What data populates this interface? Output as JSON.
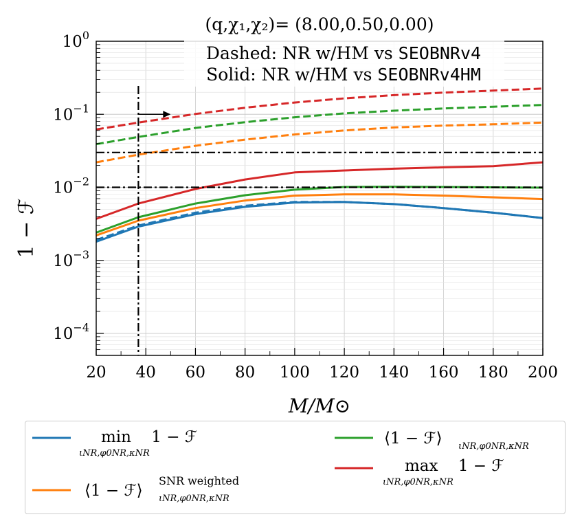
{
  "chart_data": {
    "type": "line",
    "title": "(q,χ₁,χ₂)= (8.00,0.50,0.00)",
    "annotations": {
      "dashed": {
        "prefix": "Dashed: NR w/HM vs ",
        "code": "SEOBNRv4"
      },
      "solid": {
        "prefix": "Solid: NR w/HM vs ",
        "code": "SEOBNRv4HM"
      }
    },
    "xlabel": "M/M⊙",
    "ylabel": "1 − ℱ",
    "yscale": "log",
    "xlim": [
      20,
      200
    ],
    "ylim": [
      5e-05,
      1.0
    ],
    "xticks": [
      20,
      40,
      60,
      80,
      100,
      120,
      140,
      160,
      180,
      200
    ],
    "xtick_labels": [
      "20",
      "40",
      "60",
      "80",
      "100",
      "120",
      "140",
      "160",
      "180",
      "200"
    ],
    "yticks": [
      0.0001,
      0.001,
      0.01,
      0.1,
      1.0
    ],
    "ytick_labels": [
      {
        "base": "10",
        "exp": "−4"
      },
      {
        "base": "10",
        "exp": "−3"
      },
      {
        "base": "10",
        "exp": "−2"
      },
      {
        "base": "10",
        "exp": "−1"
      },
      {
        "base": "10",
        "exp": "0"
      }
    ],
    "grid": true,
    "x": [
      20,
      37,
      60,
      80,
      100,
      120,
      140,
      160,
      180,
      200
    ],
    "series": [
      {
        "name": "min",
        "color": "#1f77b4",
        "style": "solid",
        "values": [
          0.0018,
          0.0029,
          0.0043,
          0.0054,
          0.0062,
          0.0063,
          0.0059,
          0.0052,
          0.0045,
          0.0038
        ]
      },
      {
        "name": "min",
        "color": "#1f77b4",
        "style": "dashed",
        "values": [
          0.0019,
          0.003,
          0.0045,
          0.0056,
          0.0063,
          0.0063,
          0.0059,
          0.0052,
          0.0045,
          0.0038
        ]
      },
      {
        "name": "snr_weighted",
        "color": "#ff7f0e",
        "style": "solid",
        "values": [
          0.0022,
          0.0035,
          0.0052,
          0.0066,
          0.0077,
          0.008,
          0.008,
          0.0077,
          0.0073,
          0.0069
        ]
      },
      {
        "name": "snr_weighted",
        "color": "#ff7f0e",
        "style": "dashed",
        "values": [
          0.022,
          0.028,
          0.037,
          0.045,
          0.053,
          0.06,
          0.066,
          0.07,
          0.073,
          0.077
        ]
      },
      {
        "name": "mean",
        "color": "#2ca02c",
        "style": "solid",
        "values": [
          0.0024,
          0.0039,
          0.006,
          0.0078,
          0.0093,
          0.0101,
          0.0102,
          0.0101,
          0.01,
          0.0099
        ]
      },
      {
        "name": "mean",
        "color": "#2ca02c",
        "style": "dashed",
        "values": [
          0.039,
          0.049,
          0.065,
          0.078,
          0.091,
          0.103,
          0.112,
          0.12,
          0.127,
          0.134
        ]
      },
      {
        "name": "max",
        "color": "#d62728",
        "style": "solid",
        "values": [
          0.0037,
          0.006,
          0.0095,
          0.0128,
          0.016,
          0.017,
          0.018,
          0.0188,
          0.0195,
          0.022
        ]
      },
      {
        "name": "max",
        "color": "#d62728",
        "style": "dashed",
        "values": [
          0.062,
          0.077,
          0.101,
          0.123,
          0.145,
          0.165,
          0.183,
          0.198,
          0.211,
          0.225
        ]
      }
    ],
    "hlines": [
      0.03,
      0.01
    ],
    "vline": 37,
    "arrow": {
      "x_from": 37,
      "x_to": 50,
      "y": 0.1
    },
    "legend": {
      "placement": "below",
      "entries": [
        {
          "color": "#1f77b4",
          "op": "min",
          "sub": "ιNR,φ0NR,κNR",
          "expr": "1 − ℱ"
        },
        {
          "color": "#ff7f0e",
          "op": "⟨1 − ℱ⟩",
          "sub": "ιNR,φ0NR,κNR",
          "sup": "SNR weighted"
        },
        {
          "color": "#2ca02c",
          "op": "⟨1 − ℱ⟩",
          "sub": "ιNR,φ0NR,κNR"
        },
        {
          "color": "#d62728",
          "op": "max",
          "sub": "ιNR,φ0NR,κNR",
          "expr": "1 − ℱ"
        }
      ]
    }
  }
}
